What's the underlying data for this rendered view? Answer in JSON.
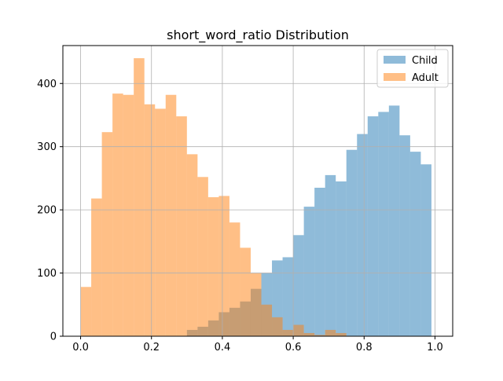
{
  "chart_data": {
    "type": "histogram",
    "title": "short_word_ratio Distribution",
    "xlabel": "",
    "ylabel": "",
    "xlim": [
      -0.05,
      1.05
    ],
    "ylim": [
      0,
      460
    ],
    "x_ticks": [
      0.0,
      0.2,
      0.4,
      0.6,
      0.8,
      1.0
    ],
    "x_tick_labels": [
      "0.0",
      "0.2",
      "0.4",
      "0.6",
      "0.8",
      "1.0"
    ],
    "y_ticks": [
      0,
      100,
      200,
      300,
      400
    ],
    "y_tick_labels": [
      "0",
      "100",
      "200",
      "300",
      "400"
    ],
    "grid": true,
    "legend_position": "top-right",
    "bins": {
      "edges": [
        0.0,
        0.03,
        0.06,
        0.09,
        0.12,
        0.15,
        0.18,
        0.21,
        0.24,
        0.27,
        0.3,
        0.33,
        0.36,
        0.39,
        0.42,
        0.45,
        0.48,
        0.51,
        0.54,
        0.57,
        0.6,
        0.63,
        0.66,
        0.69,
        0.72,
        0.75,
        0.78,
        0.81,
        0.84,
        0.87,
        0.9,
        0.93,
        0.96,
        0.99
      ]
    },
    "series": [
      {
        "name": "Child",
        "color": "#1f77b4",
        "alpha": 0.5,
        "values": [
          0,
          0,
          0,
          0,
          0,
          0,
          0,
          0,
          0,
          0,
          10,
          15,
          25,
          38,
          45,
          55,
          75,
          100,
          120,
          125,
          160,
          205,
          235,
          255,
          245,
          295,
          320,
          348,
          355,
          365,
          318,
          292,
          272,
          100
        ]
      },
      {
        "name": "Adult",
        "color": "#ff7f0e",
        "alpha": 0.5,
        "values": [
          78,
          218,
          323,
          384,
          382,
          440,
          367,
          360,
          382,
          348,
          288,
          252,
          220,
          222,
          180,
          140,
          100,
          50,
          30,
          10,
          18,
          5,
          2,
          10,
          5,
          0,
          0,
          0,
          0,
          0,
          0,
          0,
          0,
          0
        ]
      }
    ]
  }
}
